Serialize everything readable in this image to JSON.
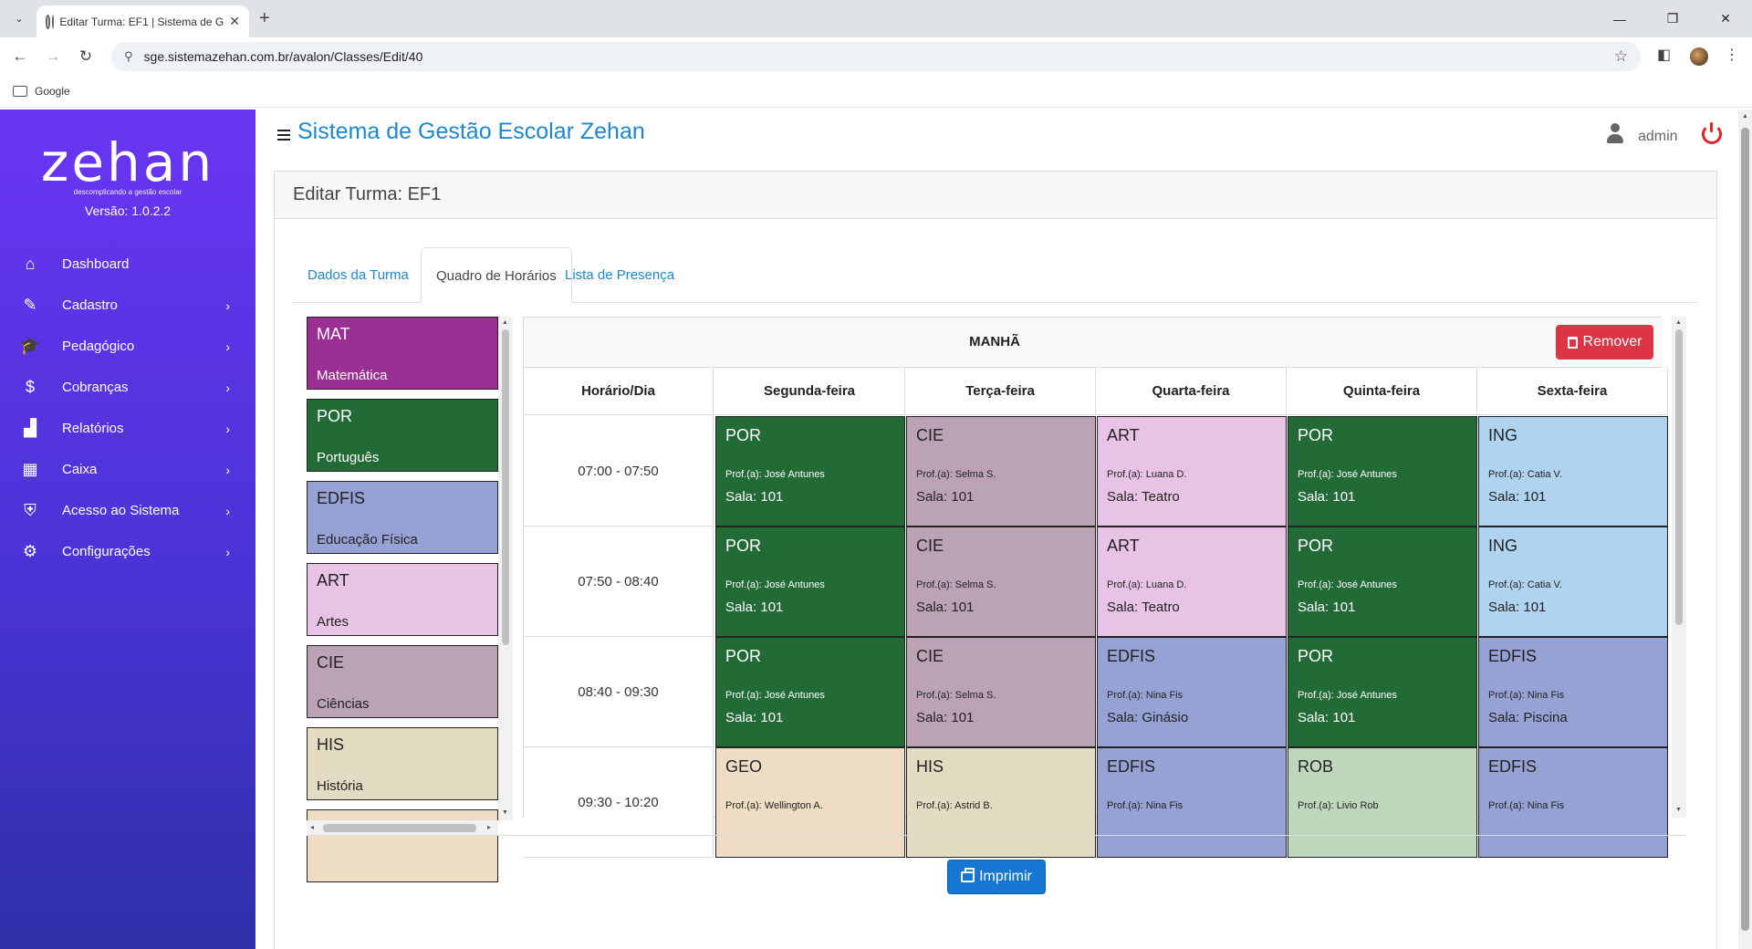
{
  "browser": {
    "tab_title": "Editar Turma: EF1 | Sistema de G",
    "url": "sge.sistemazehan.com.br/avalon/Classes/Edit/40",
    "bookmark": "Google"
  },
  "sidebar": {
    "logo": "zehan",
    "tagline": "descomplicando a gestão escolar",
    "version": "Versão: 1.0.2.2",
    "items": [
      {
        "label": "Dashboard",
        "icon": "home-icon",
        "glyph": "⌂",
        "arrow": ""
      },
      {
        "label": "Cadastro",
        "icon": "edit-icon",
        "glyph": "✎",
        "arrow": "›"
      },
      {
        "label": "Pedagógico",
        "icon": "graduation-cap-icon",
        "glyph": "🎓",
        "arrow": "›"
      },
      {
        "label": "Cobranças",
        "icon": "dollar-icon",
        "glyph": "$",
        "arrow": "›"
      },
      {
        "label": "Relatórios",
        "icon": "chart-icon",
        "glyph": "▟",
        "arrow": "›"
      },
      {
        "label": "Caixa",
        "icon": "calculator-icon",
        "glyph": "▦",
        "arrow": "›"
      },
      {
        "label": "Acesso ao Sistema",
        "icon": "shield-icon",
        "glyph": "⛨",
        "arrow": "›"
      },
      {
        "label": "Configurações",
        "icon": "gear-icon",
        "glyph": "⚙",
        "arrow": "›"
      }
    ]
  },
  "header": {
    "title": "Sistema de Gestão Escolar Zehan",
    "user": "admin"
  },
  "page": {
    "title": "Editar Turma: EF1",
    "tabs": [
      "Dados da Turma",
      "Quadro de Horários",
      "Lista de Presença"
    ],
    "remove_label": "Remover",
    "print_label": "Imprimir"
  },
  "colors": {
    "MAT": "#9b2f93",
    "POR": "#236b36",
    "EDFIS": "#97a2d4",
    "ART": "#e8c3e6",
    "CIE": "#bba2b4",
    "HIS": "#e3dbc2",
    "ING": "#b0d3f0",
    "GEO": "#efdcc4",
    "ROB": "#bfd8bd"
  },
  "subjects": [
    {
      "code": "MAT",
      "name": "Matemática",
      "text": "#ffffff"
    },
    {
      "code": "POR",
      "name": "Português",
      "text": "#ffffff"
    },
    {
      "code": "EDFIS",
      "name": "Educação Física",
      "text": "#222222"
    },
    {
      "code": "ART",
      "name": "Artes",
      "text": "#222222"
    },
    {
      "code": "CIE",
      "name": "Ciências",
      "text": "#222222"
    },
    {
      "code": "HIS",
      "name": "História",
      "text": "#222222"
    }
  ],
  "schedule": {
    "period": "MANHÃ",
    "corner": "Horário/Dia",
    "days": [
      "Segunda-feira",
      "Terça-feira",
      "Quarta-feira",
      "Quinta-feira",
      "Sexta-feira"
    ],
    "rows": [
      {
        "time": "07:00 - 07:50",
        "slots": [
          {
            "code": "POR",
            "prof": "Prof.(a): José Antunes",
            "room": "Sala: 101"
          },
          {
            "code": "CIE",
            "prof": "Prof.(a): Selma S.",
            "room": "Sala: 101"
          },
          {
            "code": "ART",
            "prof": "Prof.(a): Luana D.",
            "room": "Sala: Teatro"
          },
          {
            "code": "POR",
            "prof": "Prof.(a): José Antunes",
            "room": "Sala: 101"
          },
          {
            "code": "ING",
            "prof": "Prof.(a): Catia V.",
            "room": "Sala: 101"
          }
        ]
      },
      {
        "time": "07:50 - 08:40",
        "slots": [
          {
            "code": "POR",
            "prof": "Prof.(a): José Antunes",
            "room": "Sala: 101"
          },
          {
            "code": "CIE",
            "prof": "Prof.(a): Selma S.",
            "room": "Sala: 101"
          },
          {
            "code": "ART",
            "prof": "Prof.(a): Luana D.",
            "room": "Sala: Teatro"
          },
          {
            "code": "POR",
            "prof": "Prof.(a): José Antunes",
            "room": "Sala: 101"
          },
          {
            "code": "ING",
            "prof": "Prof.(a): Catia V.",
            "room": "Sala: 101"
          }
        ]
      },
      {
        "time": "08:40 - 09:30",
        "slots": [
          {
            "code": "POR",
            "prof": "Prof.(a): José Antunes",
            "room": "Sala: 101"
          },
          {
            "code": "CIE",
            "prof": "Prof.(a): Selma S.",
            "room": "Sala: 101"
          },
          {
            "code": "EDFIS",
            "prof": "Prof.(a): Nina Fis",
            "room": "Sala: Ginásio"
          },
          {
            "code": "POR",
            "prof": "Prof.(a): José Antunes",
            "room": "Sala: 101"
          },
          {
            "code": "EDFIS",
            "prof": "Prof.(a): Nina Fis",
            "room": "Sala: Piscina"
          }
        ]
      },
      {
        "time": "09:30 - 10:20",
        "slots": [
          {
            "code": "GEO",
            "prof": "Prof.(a): Wellington A.",
            "room": ""
          },
          {
            "code": "HIS",
            "prof": "Prof.(a): Astrid B.",
            "room": ""
          },
          {
            "code": "EDFIS",
            "prof": "Prof.(a): Nina Fis",
            "room": ""
          },
          {
            "code": "ROB",
            "prof": "Prof.(a): Livio Rob",
            "room": ""
          },
          {
            "code": "EDFIS",
            "prof": "Prof.(a): Nina Fis",
            "room": ""
          }
        ]
      }
    ]
  }
}
